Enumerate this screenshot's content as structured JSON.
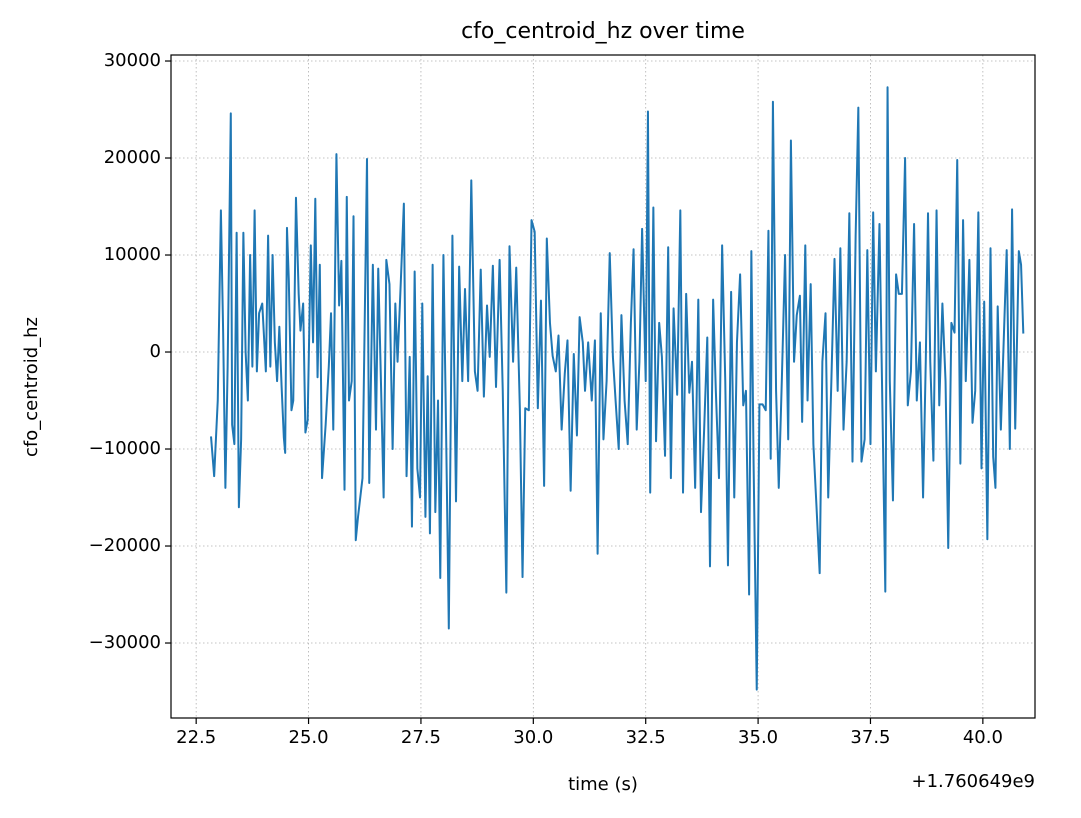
{
  "chart_data": {
    "type": "line",
    "title": "cfo_centroid_hz over time",
    "x_label": "time (s)",
    "y_label": "cfo_centroid_hz",
    "x_offset_label": "+1.760649e9",
    "x": [
      22.83,
      22.9,
      22.98,
      23.05,
      23.1,
      23.15,
      23.2,
      23.27,
      23.3,
      23.35,
      23.4,
      23.45,
      23.5,
      23.55,
      23.6,
      23.65,
      23.7,
      23.75,
      23.8,
      23.85,
      23.9,
      23.97,
      24.05,
      24.1,
      24.15,
      24.2,
      24.25,
      24.3,
      24.35,
      24.4,
      24.45,
      24.48,
      24.52,
      24.56,
      24.62,
      24.66,
      24.72,
      24.78,
      24.82,
      24.88,
      24.93,
      24.98,
      25.05,
      25.1,
      25.15,
      25.2,
      25.25,
      25.3,
      25.38,
      25.45,
      25.5,
      25.55,
      25.62,
      25.68,
      25.73,
      25.8,
      25.85,
      25.9,
      25.96,
      26.0,
      26.05,
      26.1,
      26.2,
      26.3,
      26.35,
      26.43,
      26.5,
      26.55,
      26.6,
      26.67,
      26.73,
      26.8,
      26.87,
      26.93,
      26.98,
      27.05,
      27.12,
      27.18,
      27.25,
      27.3,
      27.36,
      27.42,
      27.48,
      27.53,
      27.6,
      27.65,
      27.7,
      27.76,
      27.82,
      27.88,
      27.93,
      28.0,
      28.05,
      28.12,
      28.2,
      28.28,
      28.35,
      28.42,
      28.48,
      28.55,
      28.62,
      28.7,
      28.76,
      28.83,
      28.9,
      28.97,
      29.03,
      29.1,
      29.17,
      29.25,
      29.32,
      29.4,
      29.47,
      29.55,
      29.62,
      29.7,
      29.76,
      29.82,
      29.9,
      29.96,
      30.03,
      30.1,
      30.17,
      30.24,
      30.3,
      30.37,
      30.43,
      30.5,
      30.56,
      30.63,
      30.7,
      30.76,
      30.83,
      30.9,
      30.97,
      31.03,
      31.1,
      31.15,
      31.22,
      31.3,
      31.37,
      31.43,
      31.5,
      31.56,
      31.63,
      31.7,
      31.77,
      31.83,
      31.9,
      31.96,
      32.03,
      32.1,
      32.17,
      32.23,
      32.3,
      32.36,
      32.42,
      32.5,
      32.55,
      32.6,
      32.67,
      32.73,
      32.8,
      32.86,
      32.93,
      33.0,
      33.06,
      33.12,
      33.2,
      33.27,
      33.33,
      33.4,
      33.47,
      33.53,
      33.6,
      33.67,
      33.73,
      33.8,
      33.87,
      33.93,
      34.0,
      34.06,
      34.13,
      34.2,
      34.27,
      34.33,
      34.4,
      34.47,
      34.53,
      34.6,
      34.67,
      34.73,
      34.8,
      34.85,
      34.9,
      34.97,
      35.03,
      35.1,
      35.17,
      35.23,
      35.28,
      35.33,
      35.4,
      35.46,
      35.53,
      35.6,
      35.67,
      35.73,
      35.8,
      35.86,
      35.93,
      35.98,
      36.05,
      36.1,
      36.17,
      36.23,
      36.3,
      36.37,
      36.43,
      36.5,
      36.56,
      36.63,
      36.7,
      36.77,
      36.83,
      36.9,
      36.97,
      37.03,
      37.1,
      37.17,
      37.23,
      37.3,
      37.37,
      37.43,
      37.5,
      37.56,
      37.62,
      37.7,
      37.77,
      37.83,
      37.88,
      37.93,
      38.0,
      38.07,
      38.13,
      38.2,
      38.27,
      38.33,
      38.4,
      38.47,
      38.53,
      38.6,
      38.67,
      38.73,
      38.78,
      38.83,
      38.9,
      38.97,
      39.03,
      39.1,
      39.17,
      39.23,
      39.3,
      39.37,
      39.43,
      39.5,
      39.56,
      39.62,
      39.7,
      39.77,
      39.83,
      39.9,
      39.97,
      40.03,
      40.1,
      40.17,
      40.23,
      40.28,
      40.33,
      40.4,
      40.47,
      40.53,
      40.6,
      40.65,
      40.72,
      40.8,
      40.85,
      40.9
    ],
    "series": [
      {
        "color": "#1f77b4",
        "values": [
          -8700,
          -12800,
          -5000,
          14600,
          2000,
          -14000,
          -1500,
          24600,
          -7500,
          -9500,
          12300,
          -16000,
          -9000,
          12300,
          0,
          -5000,
          10000,
          -1500,
          14600,
          -2000,
          4000,
          5000,
          -2000,
          12000,
          -1500,
          10000,
          1000,
          -3000,
          2600,
          -3500,
          -8800,
          -10400,
          12800,
          7500,
          -6000,
          -5000,
          15900,
          6000,
          2200,
          5000,
          -8300,
          -7000,
          11000,
          1000,
          15800,
          -2600,
          9000,
          -13000,
          -7500,
          -1500,
          4000,
          -8000,
          20400,
          4800,
          9400,
          -14200,
          16000,
          -5000,
          -3000,
          14000,
          -19400,
          -17000,
          -13000,
          19900,
          -13500,
          9000,
          -8000,
          8600,
          -1000,
          -15000,
          9500,
          7000,
          -10000,
          5000,
          -1000,
          7000,
          15300,
          -12800,
          -500,
          -18000,
          8300,
          -12000,
          -15000,
          5000,
          -17000,
          -2500,
          -18700,
          9000,
          -16500,
          -5000,
          -23300,
          10000,
          -5000,
          -28500,
          12000,
          -15400,
          8800,
          -3000,
          6500,
          -3000,
          17700,
          -2000,
          -4000,
          8500,
          -4600,
          4800,
          -500,
          8900,
          -3600,
          9500,
          -4000,
          -24800,
          10900,
          -1000,
          8700,
          -5800,
          -23200,
          -5800,
          -6000,
          13600,
          12400,
          -5800,
          5300,
          -13800,
          11700,
          3000,
          -400,
          -2000,
          1700,
          -8000,
          -2200,
          1200,
          -14300,
          -200,
          -8600,
          3600,
          1000,
          -4000,
          1000,
          -5000,
          1200,
          -20800,
          4000,
          -9000,
          -3000,
          10200,
          -500,
          -5000,
          -10000,
          3800,
          -5000,
          -9500,
          3000,
          10600,
          -8000,
          -1000,
          12700,
          -3000,
          24800,
          -14500,
          14900,
          -9200,
          3000,
          -500,
          -10700,
          10800,
          -13000,
          4500,
          -4400,
          14600,
          -14500,
          6000,
          -4200,
          -1000,
          -14000,
          5400,
          -16500,
          -8000,
          1500,
          -22100,
          5400,
          -4000,
          -13000,
          11000,
          -3000,
          -22000,
          6200,
          -15000,
          1000,
          8000,
          -5500,
          -4000,
          -25000,
          10400,
          -11500,
          -34800,
          -5400,
          -5400,
          -6000,
          12500,
          -11000,
          25800,
          -4000,
          -14000,
          -2600,
          10000,
          -9000,
          21800,
          -1000,
          3800,
          5800,
          -7200,
          11000,
          -5000,
          7000,
          -9500,
          -16000,
          -22800,
          -1000,
          4000,
          -15000,
          -3000,
          9600,
          -4000,
          10700,
          -8000,
          -1000,
          14300,
          -11300,
          12000,
          25200,
          -11300,
          -9000,
          10500,
          -9500,
          14400,
          -2000,
          13200,
          -7000,
          -24700,
          27300,
          -3000,
          -15300,
          8000,
          6000,
          6000,
          20000,
          -5500,
          -2000,
          13200,
          -5000,
          1000,
          -15000,
          -1000,
          14300,
          -1000,
          -11200,
          14600,
          -5500,
          5000,
          -3000,
          -20200,
          3000,
          2000,
          19800,
          -11500,
          13600,
          -3000,
          9500,
          -7300,
          -4000,
          14400,
          -12000,
          5200,
          -19300,
          10700,
          -10800,
          -14000,
          4700,
          -8000,
          2000,
          10500,
          -10000,
          14700,
          -7900,
          10400,
          9000,
          1900
        ]
      }
    ],
    "xlim": [
      21.94,
      41.16
    ],
    "ylim": [
      -37730,
      30620
    ],
    "xticks": [
      22.5,
      {
        "value": 25,
        "label": "25.0"
      },
      27.5,
      {
        "value": 30,
        "label": "30.0"
      },
      32.5,
      {
        "value": 35,
        "label": "35.0"
      },
      37.5,
      {
        "value": 40,
        "label": "40.0"
      }
    ],
    "yticks": [
      {
        "value": -30000,
        "label": "−30000"
      },
      {
        "value": -20000,
        "label": "−20000"
      },
      {
        "value": -10000,
        "label": "−10000"
      },
      0,
      10000,
      20000,
      30000
    ],
    "grid": true
  }
}
